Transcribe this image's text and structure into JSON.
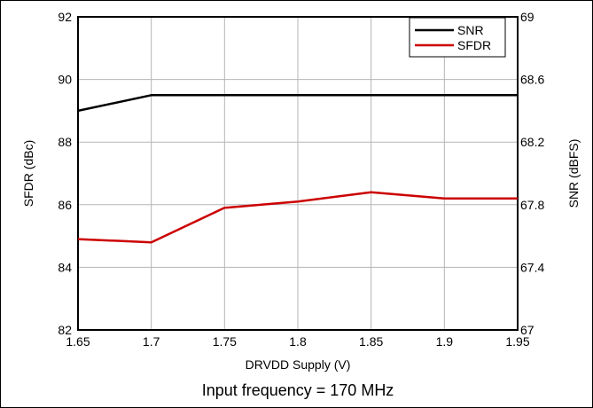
{
  "chart_data": {
    "type": "line",
    "title": "",
    "xlabel": "DRVDD Supply (V)",
    "ylabel_left": "SFDR (dBc)",
    "ylabel_right": "SNR (dBFS)",
    "caption": "Input frequency = 170 MHz",
    "x": [
      1.65,
      1.7,
      1.75,
      1.8,
      1.85,
      1.9,
      1.95
    ],
    "x_ticks": [
      "1.65",
      "1.7",
      "1.75",
      "1.8",
      "1.85",
      "1.9",
      "1.95"
    ],
    "xlim": [
      1.65,
      1.95
    ],
    "ylim_left": [
      82,
      92
    ],
    "y_ticks_left": [
      "82",
      "84",
      "86",
      "88",
      "90",
      "92"
    ],
    "ylim_right": [
      67,
      69
    ],
    "y_ticks_right": [
      "67",
      "67.4",
      "67.8",
      "68.2",
      "68.6",
      "69"
    ],
    "grid": true,
    "legend_position": "top-right",
    "series": [
      {
        "name": "SNR",
        "axis": "right",
        "color": "#000000",
        "values": [
          68.4,
          68.5,
          68.5,
          68.5,
          68.5,
          68.5,
          68.5
        ]
      },
      {
        "name": "SFDR",
        "axis": "left",
        "color": "#cc0000",
        "values": [
          84.9,
          84.8,
          85.9,
          86.1,
          86.4,
          86.2,
          86.2
        ]
      }
    ]
  }
}
